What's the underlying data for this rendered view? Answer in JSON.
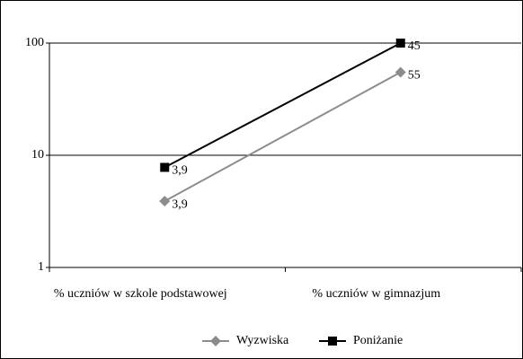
{
  "chart_data": {
    "type": "line",
    "stacked": true,
    "yscale": "log",
    "categories": [
      "% uczniów w szkole podstawowej",
      "% uczniów w gimnazjum"
    ],
    "series": [
      {
        "name": "Wyzwiska",
        "color": "#8c8c8c",
        "marker": "diamond",
        "values": [
          3.9,
          55
        ],
        "value_labels": [
          "3,9",
          "55"
        ]
      },
      {
        "name": "Poniżanie",
        "color": "#000000",
        "marker": "square",
        "values": [
          3.9,
          45
        ],
        "value_labels": [
          "3,9",
          "45"
        ]
      }
    ],
    "ylim": [
      1,
      100
    ],
    "yticks": [
      1,
      10,
      100
    ],
    "grid": true,
    "legend": "bottom"
  }
}
